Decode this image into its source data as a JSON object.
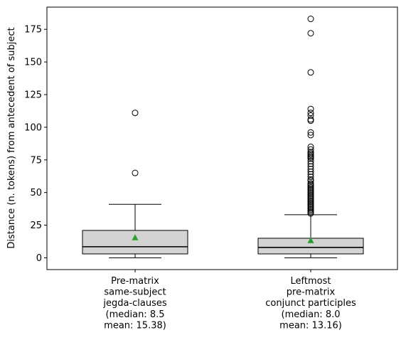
{
  "chart_data": {
    "type": "box",
    "title": "",
    "ylabel": "Distance (n. tokens) from antecedent of subject",
    "xlabel": "",
    "ylim": [
      -9,
      192
    ],
    "yticks": [
      0,
      25,
      50,
      75,
      100,
      125,
      150,
      175
    ],
    "grid": false,
    "categories": [
      {
        "label_lines": [
          "Pre-matrix",
          "same-subject",
          "jegda-clauses",
          "(median: 8.5",
          "mean: 15.38)"
        ],
        "whisker_low": 0,
        "q1": 3,
        "median": 8.5,
        "q3": 21,
        "whisker_high": 41,
        "mean": 15.38,
        "outliers": [
          65,
          111
        ]
      },
      {
        "label_lines": [
          "Leftmost",
          "pre-matrix",
          "conjunct participles",
          "(median: 8.0",
          "mean: 13.16)"
        ],
        "whisker_low": 0,
        "q1": 3,
        "median": 8.0,
        "q3": 15,
        "whisker_high": 33,
        "mean": 13.16,
        "outliers": [
          34,
          35,
          36,
          37,
          38,
          39,
          40,
          41,
          42,
          43,
          44,
          45,
          46,
          47,
          48,
          49,
          50,
          51,
          52,
          53,
          54,
          55,
          56,
          57,
          59,
          60,
          62,
          64,
          66,
          68,
          70,
          72,
          74,
          76,
          77,
          78,
          79,
          80,
          81,
          83,
          85,
          94,
          96,
          105,
          106,
          109,
          111,
          114,
          142,
          172,
          183
        ]
      }
    ],
    "colors": {
      "box_fill": "#d3d3d3",
      "box_edge": "#000000",
      "mean_marker": "#2ca02c",
      "outlier_edge": "#000000"
    }
  }
}
